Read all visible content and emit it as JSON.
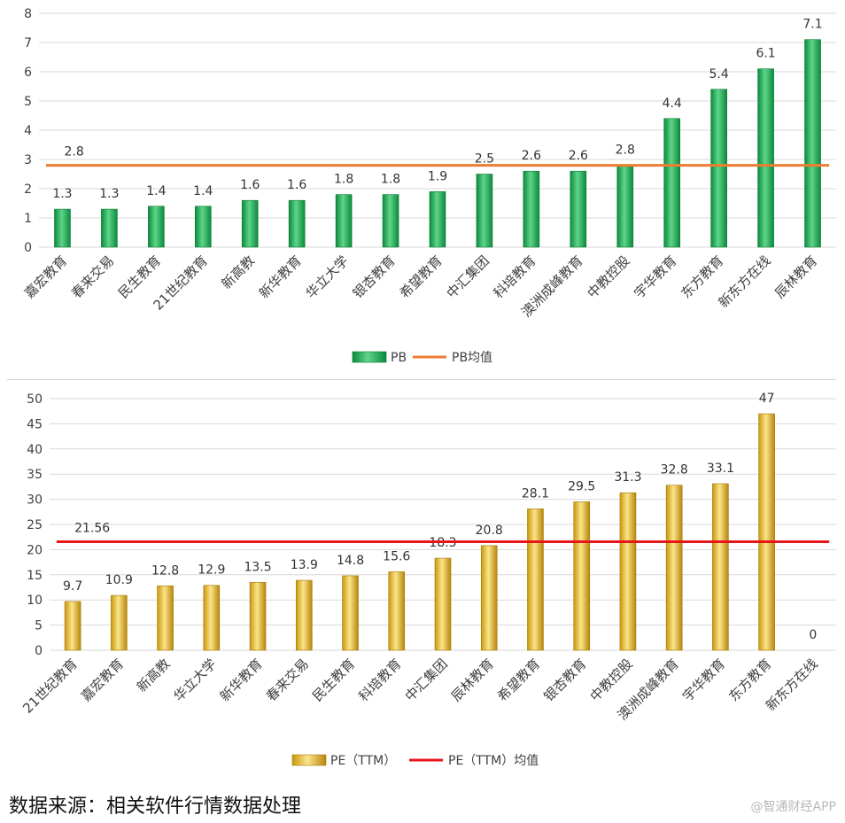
{
  "chart_data": [
    {
      "type": "bar",
      "title": "",
      "categories": [
        "嘉宏教育",
        "春来交易",
        "民生教育",
        "21世纪教育",
        "新高教",
        "新华教育",
        "华立大学",
        "银杏教育",
        "希望教育",
        "中汇集团",
        "科培教育",
        "澳洲成峰教育",
        "中教控股",
        "宇华教育",
        "东方教育",
        "新东方在线",
        "辰林教育"
      ],
      "series": [
        {
          "name": "PB",
          "kind": "bar",
          "values": [
            1.3,
            1.3,
            1.4,
            1.4,
            1.6,
            1.6,
            1.8,
            1.8,
            1.9,
            2.5,
            2.6,
            2.6,
            2.8,
            4.4,
            5.4,
            6.1,
            7.1
          ],
          "labels": [
            "1.3",
            "1.3",
            "1.4",
            "1.4",
            "1.6",
            "1.6",
            "1.8",
            "1.8",
            "1.9",
            "2.5",
            "2.6",
            "2.6",
            "2.8",
            "4.4",
            "5.4",
            "6.1",
            "7.1"
          ]
        },
        {
          "name": "PB均值",
          "kind": "line",
          "value": 2.8,
          "label": "2.8"
        }
      ],
      "y_ticks": [
        "0",
        "1",
        "2",
        "3",
        "4",
        "5",
        "6",
        "7",
        "8"
      ],
      "ylim": [
        0,
        8
      ],
      "grid": true,
      "legend": "bottom",
      "colors": {
        "bar_dark": "#0b8a3c",
        "bar_mid": "#20b05a",
        "bar_light": "#5fd58a",
        "line": "#ed7d31"
      }
    },
    {
      "type": "bar",
      "title": "",
      "categories": [
        "21世纪教育",
        "嘉宏教育",
        "新高教",
        "华立大学",
        "新华教育",
        "春来交易",
        "民生教育",
        "科培教育",
        "中汇集团",
        "辰林教育",
        "希望教育",
        "银杏教育",
        "中教控股",
        "澳洲成峰教育",
        "宇华教育",
        "东方教育",
        "新东方在线"
      ],
      "series": [
        {
          "name": "PE（TTM）",
          "kind": "bar",
          "values": [
            9.7,
            10.9,
            12.8,
            12.9,
            13.5,
            13.9,
            14.8,
            15.6,
            18.3,
            20.8,
            28.1,
            29.5,
            31.3,
            32.8,
            33.1,
            47,
            0
          ],
          "labels": [
            "9.7",
            "10.9",
            "12.8",
            "12.9",
            "13.5",
            "13.9",
            "14.8",
            "15.6",
            "18.3",
            "20.8",
            "28.1",
            "29.5",
            "31.3",
            "32.8",
            "33.1",
            "47",
            "0"
          ]
        },
        {
          "name": "PE（TTM）均值",
          "kind": "line",
          "value": 21.56,
          "label": "21.56"
        }
      ],
      "y_ticks": [
        "0",
        "5",
        "10",
        "15",
        "20",
        "25",
        "30",
        "35",
        "40",
        "45",
        "50"
      ],
      "ylim": [
        0,
        50
      ],
      "grid": true,
      "legend": "bottom",
      "colors": {
        "bar_dark": "#b8860b",
        "bar_mid": "#f0c419",
        "bar_light": "#fbe58a",
        "line": "#e8161b"
      }
    }
  ],
  "footer": {
    "source": "数据来源：相关软件行情数据处理",
    "watermark": "@智通财经APP"
  }
}
